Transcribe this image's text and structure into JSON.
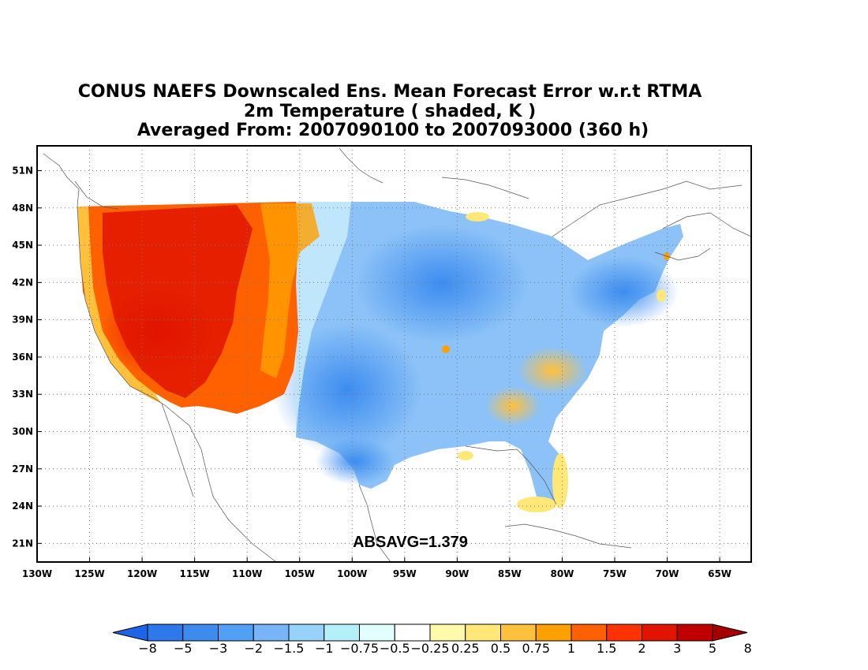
{
  "title": {
    "line1": "CONUS NAEFS Downscaled Ens. Mean Forecast Error w.r.t RTMA",
    "line2": "2m Temperature ( shaded, K )",
    "line3": "Averaged From: 2007090100 to 2007093000 (360 h)"
  },
  "annotation": "ABSAVG=1.379",
  "map": {
    "projection": "lat-lon",
    "lon_range": [
      -130,
      -62
    ],
    "lat_range": [
      19.5,
      53
    ],
    "lon_ticks": [
      "130W",
      "125W",
      "120W",
      "115W",
      "110W",
      "105W",
      "100W",
      "95W",
      "90W",
      "85W",
      "80W",
      "75W",
      "70W",
      "65W"
    ],
    "lat_ticks": [
      "51N",
      "48N",
      "45N",
      "42N",
      "39N",
      "36N",
      "33N",
      "30N",
      "27N",
      "24N",
      "21N"
    ],
    "gridlines": "dotted",
    "field": "2m Temperature forecast error (K)",
    "pattern": {
      "west_of_105W": "warm bias (orange to red, 1.5 to 5 K)",
      "great_plains_midwest_northeast": "cold bias (blue, -0.75 to -3 K)",
      "southeast": "near zero with scattered warm spots (0.25 to 1.5 K)"
    }
  },
  "colorbar": {
    "labels": [
      "-8",
      "-5",
      "-3",
      "-2",
      "-1.5",
      "-1",
      "-0.75",
      "-0.5",
      "-0.25",
      "0.25",
      "0.5",
      "0.75",
      "1",
      "1.5",
      "2",
      "3",
      "5",
      "8"
    ],
    "colors": [
      "#1e64e6",
      "#2d78eb",
      "#3c8cf0",
      "#50a0f5",
      "#78b4fa",
      "#96d2fa",
      "#b4f0fa",
      "#e1ffff",
      "#ffffff",
      "#fffaaa",
      "#ffe878",
      "#ffc03c",
      "#ffa000",
      "#ff6000",
      "#ff3200",
      "#e11400",
      "#c00000",
      "#a50000"
    ]
  }
}
